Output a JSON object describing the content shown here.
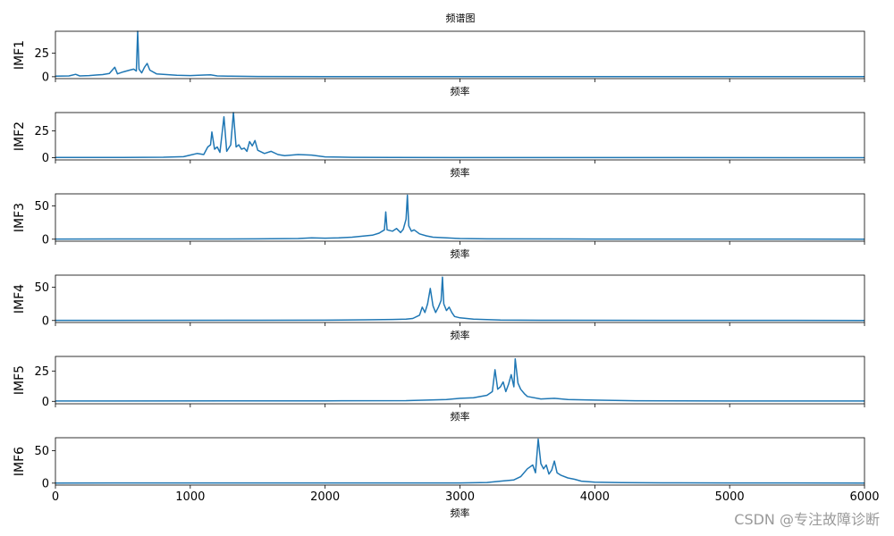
{
  "watermark": "CSDN @专注故障诊断",
  "chart_data": {
    "type": "line",
    "title": "频谱图",
    "xlabel": "频率",
    "xlim": [
      0,
      6000
    ],
    "xticks": [
      0,
      1000,
      2000,
      3000,
      4000,
      5000,
      6000
    ],
    "line_color": "#1f77b4",
    "grid": false,
    "panels": [
      {
        "ylabel": "IMF1",
        "ylim": [
          -2,
          48
        ],
        "yticks": [
          0,
          25
        ],
        "series": [
          {
            "values": [
              [
                0,
                0.5
              ],
              [
                100,
                0.8
              ],
              [
                150,
                2.5
              ],
              [
                180,
                0.8
              ],
              [
                250,
                1.2
              ],
              [
                300,
                1.8
              ],
              [
                350,
                2.2
              ],
              [
                400,
                3.5
              ],
              [
                440,
                10
              ],
              [
                460,
                3
              ],
              [
                500,
                5
              ],
              [
                550,
                7
              ],
              [
                580,
                8
              ],
              [
                600,
                6
              ],
              [
                610,
                48
              ],
              [
                620,
                8
              ],
              [
                640,
                4
              ],
              [
                660,
                10
              ],
              [
                680,
                14
              ],
              [
                700,
                7
              ],
              [
                750,
                3
              ],
              [
                800,
                2.5
              ],
              [
                900,
                1.5
              ],
              [
                1000,
                1.2
              ],
              [
                1100,
                1.8
              ],
              [
                1150,
                2
              ],
              [
                1200,
                0.8
              ],
              [
                1300,
                0.5
              ],
              [
                1500,
                0.3
              ],
              [
                2000,
                0.2
              ],
              [
                3000,
                0.1
              ],
              [
                4000,
                0.1
              ],
              [
                6000,
                0.1
              ]
            ]
          }
        ]
      },
      {
        "ylabel": "IMF2",
        "ylim": [
          -2,
          42
        ],
        "yticks": [
          0,
          25
        ],
        "series": [
          {
            "values": [
              [
                0,
                0.2
              ],
              [
                500,
                0.3
              ],
              [
                800,
                0.5
              ],
              [
                950,
                1
              ],
              [
                1000,
                2.5
              ],
              [
                1050,
                4
              ],
              [
                1100,
                3
              ],
              [
                1130,
                10
              ],
              [
                1150,
                12
              ],
              [
                1160,
                24
              ],
              [
                1180,
                8
              ],
              [
                1200,
                10
              ],
              [
                1220,
                5
              ],
              [
                1250,
                38
              ],
              [
                1270,
                6
              ],
              [
                1300,
                12
              ],
              [
                1320,
                42
              ],
              [
                1340,
                10
              ],
              [
                1360,
                12
              ],
              [
                1380,
                8
              ],
              [
                1400,
                9
              ],
              [
                1420,
                6
              ],
              [
                1440,
                15
              ],
              [
                1460,
                11
              ],
              [
                1480,
                16
              ],
              [
                1500,
                7
              ],
              [
                1550,
                4
              ],
              [
                1600,
                6
              ],
              [
                1650,
                3
              ],
              [
                1700,
                2
              ],
              [
                1800,
                3
              ],
              [
                1900,
                2.5
              ],
              [
                2000,
                0.8
              ],
              [
                2200,
                0.4
              ],
              [
                2500,
                0.2
              ],
              [
                6000,
                0.1
              ]
            ]
          }
        ]
      },
      {
        "ylabel": "IMF3",
        "ylim": [
          -3,
          68
        ],
        "yticks": [
          0,
          50
        ],
        "series": [
          {
            "values": [
              [
                0,
                0.2
              ],
              [
                1000,
                0.3
              ],
              [
                1500,
                0.5
              ],
              [
                1800,
                1
              ],
              [
                1900,
                2
              ],
              [
                2000,
                1.5
              ],
              [
                2100,
                2
              ],
              [
                2200,
                3
              ],
              [
                2300,
                5
              ],
              [
                2350,
                6
              ],
              [
                2400,
                9
              ],
              [
                2440,
                14
              ],
              [
                2450,
                41
              ],
              [
                2460,
                14
              ],
              [
                2500,
                12
              ],
              [
                2530,
                16
              ],
              [
                2560,
                10
              ],
              [
                2580,
                15
              ],
              [
                2600,
                30
              ],
              [
                2610,
                66
              ],
              [
                2620,
                20
              ],
              [
                2640,
                12
              ],
              [
                2660,
                14
              ],
              [
                2700,
                8
              ],
              [
                2750,
                5
              ],
              [
                2800,
                3
              ],
              [
                2900,
                2
              ],
              [
                3000,
                1
              ],
              [
                3200,
                0.5
              ],
              [
                4000,
                0.2
              ],
              [
                6000,
                0.1
              ]
            ]
          }
        ]
      },
      {
        "ylabel": "IMF4",
        "ylim": [
          -3,
          68
        ],
        "yticks": [
          0,
          50
        ],
        "series": [
          {
            "values": [
              [
                0,
                0.2
              ],
              [
                1500,
                0.3
              ],
              [
                2000,
                0.5
              ],
              [
                2300,
                1
              ],
              [
                2500,
                1.5
              ],
              [
                2600,
                2
              ],
              [
                2650,
                3
              ],
              [
                2700,
                8
              ],
              [
                2720,
                20
              ],
              [
                2740,
                12
              ],
              [
                2760,
                25
              ],
              [
                2780,
                48
              ],
              [
                2800,
                22
              ],
              [
                2820,
                12
              ],
              [
                2840,
                20
              ],
              [
                2860,
                30
              ],
              [
                2870,
                65
              ],
              [
                2880,
                25
              ],
              [
                2900,
                15
              ],
              [
                2920,
                20
              ],
              [
                2940,
                12
              ],
              [
                2960,
                6
              ],
              [
                3000,
                4
              ],
              [
                3100,
                2
              ],
              [
                3300,
                0.8
              ],
              [
                3600,
                0.4
              ],
              [
                4500,
                0.2
              ],
              [
                6000,
                0.1
              ]
            ]
          }
        ]
      },
      {
        "ylabel": "IMF5",
        "ylim": [
          -2,
          37
        ],
        "yticks": [
          0,
          25
        ],
        "series": [
          {
            "values": [
              [
                0,
                0.3
              ],
              [
                2000,
                0.4
              ],
              [
                2600,
                0.6
              ],
              [
                2900,
                1.5
              ],
              [
                3000,
                2.5
              ],
              [
                3100,
                3
              ],
              [
                3200,
                5
              ],
              [
                3240,
                8
              ],
              [
                3260,
                26
              ],
              [
                3280,
                10
              ],
              [
                3300,
                12
              ],
              [
                3320,
                16
              ],
              [
                3340,
                8
              ],
              [
                3360,
                14
              ],
              [
                3380,
                22
              ],
              [
                3400,
                12
              ],
              [
                3410,
                35
              ],
              [
                3430,
                15
              ],
              [
                3450,
                10
              ],
              [
                3480,
                6
              ],
              [
                3500,
                4
              ],
              [
                3600,
                2
              ],
              [
                3700,
                2.5
              ],
              [
                3800,
                1.5
              ],
              [
                4000,
                1
              ],
              [
                4300,
                0.5
              ],
              [
                5000,
                0.3
              ],
              [
                6000,
                0.3
              ]
            ]
          }
        ]
      },
      {
        "ylabel": "IMF6",
        "ylim": [
          -3,
          70
        ],
        "yticks": [
          0,
          50
        ],
        "series": [
          {
            "values": [
              [
                0,
                0.2
              ],
              [
                3000,
                0.3
              ],
              [
                3200,
                1
              ],
              [
                3300,
                3
              ],
              [
                3400,
                5
              ],
              [
                3450,
                10
              ],
              [
                3500,
                22
              ],
              [
                3540,
                28
              ],
              [
                3560,
                16
              ],
              [
                3580,
                68
              ],
              [
                3600,
                30
              ],
              [
                3620,
                22
              ],
              [
                3640,
                28
              ],
              [
                3660,
                14
              ],
              [
                3680,
                20
              ],
              [
                3700,
                34
              ],
              [
                3720,
                16
              ],
              [
                3750,
                12
              ],
              [
                3800,
                8
              ],
              [
                3850,
                6
              ],
              [
                3900,
                3
              ],
              [
                4000,
                1.5
              ],
              [
                4200,
                0.8
              ],
              [
                4500,
                0.5
              ],
              [
                5000,
                0.3
              ],
              [
                6000,
                0.2
              ]
            ]
          }
        ]
      }
    ]
  }
}
